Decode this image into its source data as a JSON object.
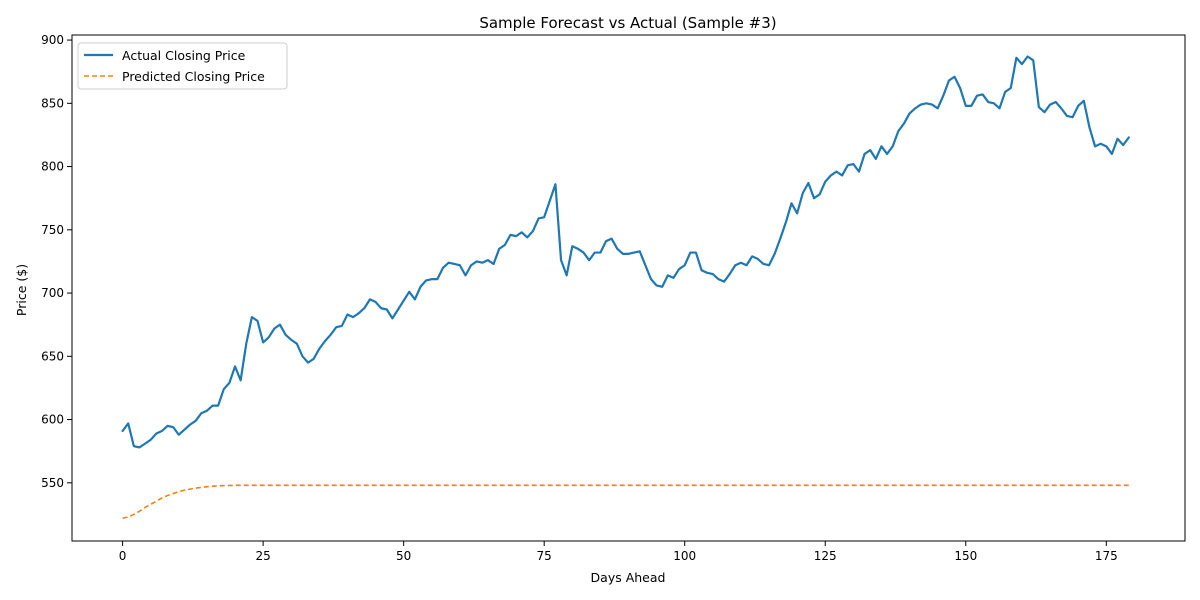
{
  "chart_data": {
    "type": "line",
    "title": "Sample Forecast vs Actual (Sample #3)",
    "xlabel": "Days Ahead",
    "ylabel": "Price ($)",
    "xlim": [
      -9,
      189
    ],
    "ylim": [
      504,
      904
    ],
    "xticks": [
      0,
      25,
      50,
      75,
      100,
      125,
      150,
      175
    ],
    "yticks": [
      550,
      600,
      650,
      700,
      750,
      800,
      850,
      900
    ],
    "grid": false,
    "legend_position": "upper-left",
    "series": [
      {
        "name": "Actual Closing Price",
        "color": "#1f77b4",
        "style": "solid",
        "values": [
          591,
          597,
          579,
          578,
          581,
          584,
          589,
          591,
          595,
          594,
          588,
          592,
          596,
          599,
          605,
          607,
          611,
          611,
          624,
          629,
          642,
          631,
          660,
          681,
          678,
          661,
          665,
          672,
          675,
          667,
          663,
          660,
          650,
          645,
          648,
          656,
          662,
          667,
          673,
          674,
          683,
          681,
          684,
          688,
          695,
          693,
          688,
          687,
          680,
          687,
          694,
          701,
          695,
          705,
          710,
          711,
          711,
          720,
          724,
          723,
          722,
          714,
          722,
          725,
          724,
          726,
          723,
          735,
          738,
          746,
          745,
          748,
          744,
          749,
          759,
          760,
          773,
          786,
          726,
          714,
          737,
          735,
          732,
          726,
          732,
          732,
          741,
          743,
          735,
          731,
          731,
          732,
          733,
          722,
          711,
          706,
          705,
          714,
          712,
          719,
          722,
          732,
          732,
          718,
          716,
          715,
          711,
          709,
          715,
          722,
          724,
          722,
          729,
          727,
          723,
          722,
          731,
          743,
          756,
          771,
          763,
          779,
          787,
          775,
          778,
          788,
          793,
          796,
          793,
          801,
          802,
          796,
          810,
          813,
          806,
          816,
          810,
          816,
          828,
          834,
          842,
          846,
          849,
          850,
          849,
          846,
          856,
          868,
          871,
          862,
          848,
          848,
          856,
          857,
          851,
          850,
          846,
          859,
          862,
          886,
          881,
          887,
          884,
          847,
          843,
          849,
          851,
          846,
          840,
          839,
          848,
          852,
          831,
          816,
          818,
          816,
          810,
          822,
          817,
          823
        ]
      },
      {
        "name": "Predicted Closing Price",
        "color": "#ff7f0e",
        "style": "dashed",
        "values": [
          522,
          523,
          525,
          527.5,
          530.5,
          533,
          535.5,
          538,
          540,
          541.5,
          543,
          544.2,
          545,
          545.8,
          546.4,
          546.9,
          547.3,
          547.6,
          547.8,
          547.9,
          548,
          548,
          548,
          548,
          548,
          548,
          548,
          548,
          548,
          548,
          548,
          548,
          548,
          548,
          548,
          548,
          548,
          548,
          548,
          548,
          548,
          548,
          548,
          548,
          548,
          548,
          548,
          548,
          548,
          548,
          548,
          548,
          548,
          548,
          548,
          548,
          548,
          548,
          548,
          548,
          548,
          548,
          548,
          548,
          548,
          548,
          548,
          548,
          548,
          548,
          548,
          548,
          548,
          548,
          548,
          548,
          548,
          548,
          548,
          548,
          548,
          548,
          548,
          548,
          548,
          548,
          548,
          548,
          548,
          548,
          548,
          548,
          548,
          548,
          548,
          548,
          548,
          548,
          548,
          548,
          548,
          548,
          548,
          548,
          548,
          548,
          548,
          548,
          548,
          548,
          548,
          548,
          548,
          548,
          548,
          548,
          548,
          548,
          548,
          548,
          548,
          548,
          548,
          548,
          548,
          548,
          548,
          548,
          548,
          548,
          548,
          548,
          548,
          548,
          548,
          548,
          548,
          548,
          548,
          548,
          548,
          548,
          548,
          548,
          548,
          548,
          548,
          548,
          548,
          548,
          548,
          548,
          548,
          548,
          548,
          548,
          548,
          548,
          548,
          548,
          548,
          548,
          548,
          548,
          548,
          548,
          548,
          548,
          548,
          548,
          548,
          548,
          548,
          548,
          548,
          548,
          548,
          548,
          548,
          548
        ]
      }
    ]
  }
}
